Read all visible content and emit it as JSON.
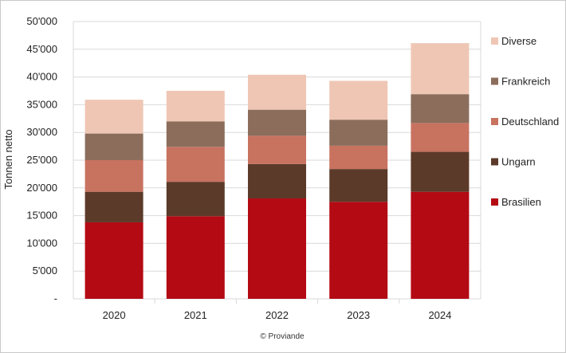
{
  "chart_data": {
    "type": "bar",
    "stacked": true,
    "categories": [
      "2020",
      "2021",
      "2022",
      "2023",
      "2024"
    ],
    "series": [
      {
        "name": "Brasilien",
        "color": "#b30a14",
        "values": [
          13800,
          14900,
          18100,
          17500,
          19300
        ]
      },
      {
        "name": "Ungarn",
        "color": "#5c3a29",
        "values": [
          5500,
          6200,
          6200,
          5900,
          7200
        ]
      },
      {
        "name": "Deutschland",
        "color": "#c87260",
        "values": [
          5700,
          6300,
          5100,
          4200,
          5200
        ]
      },
      {
        "name": "Frankreich",
        "color": "#8c6d5c",
        "values": [
          4800,
          4600,
          4700,
          4700,
          5200
        ]
      },
      {
        "name": "Diverse",
        "color": "#efc6b4",
        "values": [
          6100,
          5500,
          6300,
          7000,
          9200
        ]
      }
    ],
    "yticks": [
      0,
      5000,
      10000,
      15000,
      20000,
      25000,
      30000,
      35000,
      40000,
      45000,
      50000
    ],
    "ytick_labels": [
      "-",
      "5'000",
      "10'000",
      "15'000",
      "20'000",
      "25'000",
      "30'000",
      "35'000",
      "40'000",
      "45'000",
      "50'000"
    ],
    "ylim": [
      0,
      50000
    ],
    "xlabel": "",
    "ylabel": "Tonnen netto",
    "legend_position": "right",
    "grid": true
  },
  "credit": "© Proviande"
}
